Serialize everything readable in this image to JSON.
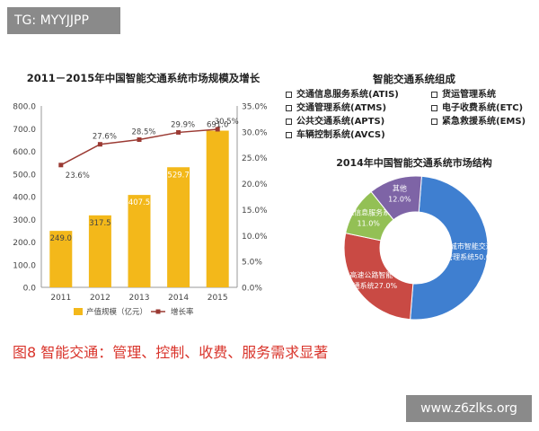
{
  "watermarks": {
    "top": "TG: MYYJJPP",
    "bottom": "www.z6zlks.org"
  },
  "composition": {
    "title": "智能交通系统组成",
    "items": [
      "交通信息服务系统(ATIS)",
      "货运管理系统",
      "交通管理系统(ATMS)",
      "电子收费系统(ETC)",
      "公共交通系统(APTS)",
      "紧急救援系统(EMS)",
      "车辆控制系统(AVCS)"
    ]
  },
  "caption": "图8  智能交通：管理、控制、收费、服务需求显著",
  "colors": {
    "bar": "#f3b81a",
    "line": "#9b3a33",
    "donut": [
      "#3f7fd0",
      "#c94a44",
      "#93c055",
      "#7e64a6"
    ]
  },
  "chart_data": [
    {
      "type": "bar",
      "title": "2011－2015年中国智能交通系统市场规模及增长",
      "categories": [
        "2011",
        "2012",
        "2013",
        "2014",
        "2015"
      ],
      "series": [
        {
          "name": "产值规模（亿元）",
          "type": "bar",
          "values": [
            249.0,
            317.5,
            407.5,
            529.7,
            691.0
          ],
          "labels": [
            "249.0",
            "317.5",
            "407.5",
            "529.7",
            "691.0"
          ]
        },
        {
          "name": "增长率",
          "type": "line",
          "axis": "right",
          "values": [
            23.6,
            27.6,
            28.5,
            29.9,
            30.5
          ],
          "labels": [
            "23.6%",
            "27.6%",
            "28.5%",
            "29.9%",
            "30.5%"
          ]
        }
      ],
      "ylim": [
        0,
        800
      ],
      "y_ticks": [
        "0.0",
        "100.0",
        "200.0",
        "300.0",
        "400.0",
        "500.0",
        "600.0",
        "700.0",
        "800.0"
      ],
      "y2lim": [
        0,
        35
      ],
      "y2_ticks": [
        "0.0%",
        "5.0%",
        "10.0%",
        "15.0%",
        "20.0%",
        "25.0%",
        "30.0%",
        "35.0%"
      ],
      "grid": false,
      "legend": "bottom"
    },
    {
      "type": "pie",
      "title": "2014年中国智能交通系统市场结构",
      "slices": [
        {
          "label_lines": [
            "城市智能交通",
            "管理系统50.0%"
          ],
          "value": 50.0
        },
        {
          "label_lines": [
            "高速公路智能",
            "交通系统27.0%"
          ],
          "value": 27.0
        },
        {
          "label_lines": [
            "交通信息服务系统",
            "11.0%"
          ],
          "value": 11.0
        },
        {
          "label_lines": [
            "其他",
            "12.0%"
          ],
          "value": 12.0
        }
      ]
    }
  ]
}
